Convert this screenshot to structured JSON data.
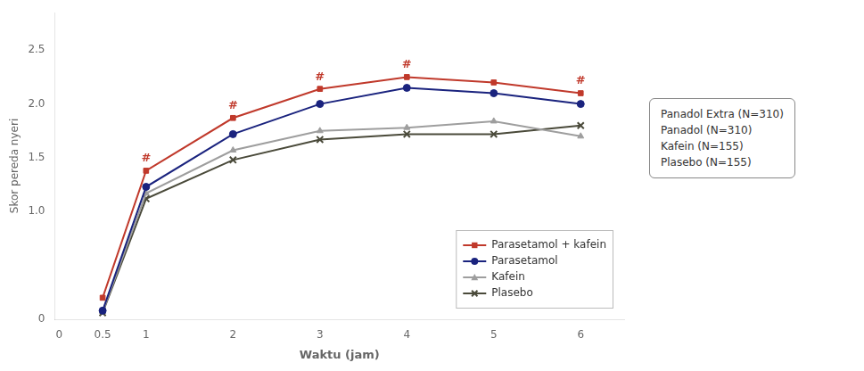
{
  "chart_data": {
    "type": "line",
    "x": [
      0.5,
      1,
      2,
      3,
      4,
      5,
      6
    ],
    "series": [
      {
        "name": "Parasetamol + kafein",
        "color": "#c0392b",
        "marker": "square",
        "values": [
          0.2,
          1.38,
          1.87,
          2.14,
          2.25,
          2.2,
          2.1
        ]
      },
      {
        "name": "Parasetamol",
        "color": "#1a237e",
        "marker": "circle",
        "values": [
          0.08,
          1.23,
          1.72,
          2.0,
          2.15,
          2.1,
          2.0
        ]
      },
      {
        "name": "Kafein",
        "color": "#9e9e9e",
        "marker": "triangle",
        "values": [
          0.07,
          1.17,
          1.57,
          1.75,
          1.78,
          1.84,
          1.7
        ]
      },
      {
        "name": "Plasebo",
        "color": "#4a4a3a",
        "marker": "x",
        "values": [
          0.06,
          1.12,
          1.48,
          1.67,
          1.72,
          1.72,
          1.8
        ]
      }
    ],
    "xlabel": "Waktu (jam)",
    "ylabel": "Skor pereda nyeri",
    "xlim": [
      -0.05,
      6.5
    ],
    "ylim": [
      0,
      2.85
    ],
    "xticks": [
      0,
      0.5,
      1,
      2,
      3,
      4,
      5,
      6
    ],
    "yticks": [
      0,
      {
        "value": 0.5,
        "label": null
      },
      {
        "value": 1.0,
        "label": "1.0"
      },
      {
        "value": 1.5,
        "label": "1.5"
      },
      {
        "value": 2.0,
        "label": "2.0"
      },
      {
        "value": 2.5,
        "label": "2.5"
      }
    ],
    "grid": false,
    "legend": "lower right",
    "annotations": [
      {
        "text": "#",
        "x": 1,
        "y": 1.38,
        "color": "#c0392b"
      },
      {
        "text": "#",
        "x": 2,
        "y": 1.87,
        "color": "#c0392b"
      },
      {
        "text": "#",
        "x": 3,
        "y": 2.14,
        "color": "#c0392b"
      },
      {
        "text": "#",
        "x": 4,
        "y": 2.25,
        "color": "#c0392b"
      },
      {
        "text": "#",
        "x": 6,
        "y": 2.1,
        "color": "#c0392b"
      }
    ],
    "side_box": [
      "Panadol Extra (N=310)",
      "Panadol (N=310)",
      "Kafein (N=155)",
      "Plasebo (N=155)"
    ]
  }
}
